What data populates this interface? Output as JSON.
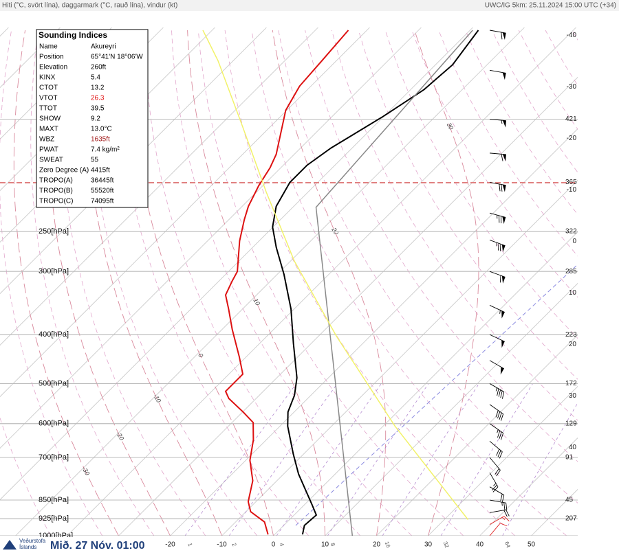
{
  "header": {
    "left": "Hiti (°C, svört lína), daggarmark (°C, rauð lína), vindur (kt)",
    "right": "UWC/IG 5km: 25.11.2024 15:00 UTC (+34)"
  },
  "indices": {
    "title": "Sounding Indices",
    "rows": [
      {
        "label": "Name",
        "value": "Akureyri"
      },
      {
        "label": "Position",
        "value": "65°41'N 18°06'W"
      },
      {
        "label": "Elevation",
        "value": "260ft"
      },
      {
        "label": "KINX",
        "value": "5.4"
      },
      {
        "label": "CTOT",
        "value": "13.2"
      },
      {
        "label": "VTOT",
        "value": "26.3",
        "color": "#e01010"
      },
      {
        "label": "TTOT",
        "value": "39.5"
      },
      {
        "label": "SHOW",
        "value": "9.2"
      },
      {
        "label": "MAXT",
        "value": "13.0°C"
      },
      {
        "label": "WBZ",
        "value": "1635ft",
        "color": "#a01818"
      },
      {
        "label": "PWAT",
        "value": "7.4 kg/m²"
      },
      {
        "label": "SWEAT",
        "value": "55"
      },
      {
        "label": "Zero Degree (A)",
        "value": "4415ft"
      },
      {
        "label": "TROPO(A)",
        "value": "36445ft"
      },
      {
        "label": "TROPO(B)",
        "value": "55520ft"
      },
      {
        "label": "TROPO(C)",
        "value": "74095ft"
      }
    ]
  },
  "footer": {
    "logo_line1": "Veðurstofa",
    "logo_line2": "Íslands",
    "date": "Mið. 27 Nóv. 01:00"
  },
  "chart_data": {
    "type": "skewt",
    "xlim": [
      -53,
      59
    ],
    "ylim": [
      1000,
      100
    ],
    "log_y": true,
    "xticks": [
      -20,
      -10,
      0,
      10,
      20,
      30,
      40,
      50
    ],
    "yticks": [
      {
        "value": 250,
        "label": "250[hPa]"
      },
      {
        "value": 300,
        "label": "300[hPa]"
      },
      {
        "value": 400,
        "label": "400[hPa]"
      },
      {
        "value": 500,
        "label": "500[hPa]"
      },
      {
        "value": 600,
        "label": "600[hPa]"
      },
      {
        "value": 700,
        "label": "700[hPa]"
      },
      {
        "value": 850,
        "label": "850[hPa]"
      },
      {
        "value": 925,
        "label": "925[hPa]"
      },
      {
        "value": 1000,
        "label": "1000[hPa]"
      }
    ],
    "height_labels": [
      {
        "value": 150,
        "label": "421"
      },
      {
        "value": 200,
        "label": "365"
      },
      {
        "value": 250,
        "label": "322"
      },
      {
        "value": 300,
        "label": "285"
      },
      {
        "value": 400,
        "label": "223"
      },
      {
        "value": 500,
        "label": "172"
      },
      {
        "value": 600,
        "label": "129"
      },
      {
        "value": 700,
        "label": "91"
      },
      {
        "value": 850,
        "label": "45"
      },
      {
        "value": 925,
        "label": "207"
      }
    ],
    "tropopause": 200,
    "right_labels": [
      -40,
      -30,
      -20,
      -10,
      0,
      10,
      20,
      30,
      40
    ],
    "moist_adiabats": [
      30,
      20,
      10,
      0,
      -10,
      -20,
      -30
    ],
    "mixing_ratios": [
      1,
      2,
      4,
      8,
      16,
      32,
      64
    ],
    "series": [
      {
        "color": "#000000",
        "pressure": [
          994,
          954,
          910,
          870,
          755,
          688,
          607,
          569,
          527,
          487,
          416,
          356,
          304,
          269,
          245,
          223,
          200,
          185,
          171,
          148,
          131,
          117,
          100
        ],
        "values": [
          5.4,
          4.0,
          4.3,
          1.6,
          -7.1,
          -12.1,
          -18.5,
          -21.2,
          -23.2,
          -26.1,
          -33.5,
          -40.6,
          -48.7,
          -55.4,
          -60.1,
          -63.4,
          -65.4,
          -65.4,
          -64.1,
          -60.1,
          -57.4,
          -56.7,
          -58.4
        ]
      },
      {
        "color": "#dd1111",
        "pressure": [
          994,
          939,
          896,
          856,
          778,
          709,
          646,
          597,
          569,
          535,
          518,
          502,
          479,
          443,
          391,
          356,
          334,
          314,
          300,
          261,
          237,
          223,
          203,
          187,
          176,
          144,
          129,
          115,
          100
        ],
        "values": [
          -1.3,
          -4.4,
          -9.1,
          -11.5,
          -14.7,
          -19.2,
          -22.5,
          -25.9,
          -29.9,
          -35.3,
          -37.3,
          -37.3,
          -37.3,
          -41.3,
          -48.0,
          -52.7,
          -56.0,
          -57.4,
          -58.3,
          -63.8,
          -67.0,
          -68.8,
          -70.8,
          -72.1,
          -73.5,
          -80.2,
          -82.2,
          -82.8,
          -83.6
        ]
      },
      {
        "color": "#888888",
        "pressure": [
          1000,
          224,
          100
        ],
        "values": [
          15.3,
          -55.5,
          -59.5
        ]
      },
      {
        "color": "#f2f26a",
        "pressure": [
          929,
          607,
          403,
          286,
          209,
          153,
          115,
          100
        ],
        "values": [
          34.6,
          2.3,
          -26.5,
          -49.3,
          -68.1,
          -86.2,
          -102.9,
          -111.8
        ]
      }
    ],
    "wind": {
      "pressure": [
        100,
        120,
        150,
        175,
        200,
        230,
        260,
        300,
        350,
        400,
        450,
        500,
        550,
        600,
        650,
        700,
        750,
        800,
        850,
        900,
        950,
        1000
      ],
      "speed": [
        60,
        50,
        55,
        60,
        70,
        75,
        75,
        60,
        55,
        50,
        50,
        45,
        40,
        35,
        30,
        20,
        25,
        20,
        25,
        20,
        15,
        10
      ],
      "direction": [
        100,
        100,
        95,
        95,
        100,
        105,
        110,
        110,
        115,
        115,
        120,
        120,
        125,
        125,
        130,
        140,
        150,
        120,
        100,
        80,
        60,
        40
      ]
    }
  }
}
